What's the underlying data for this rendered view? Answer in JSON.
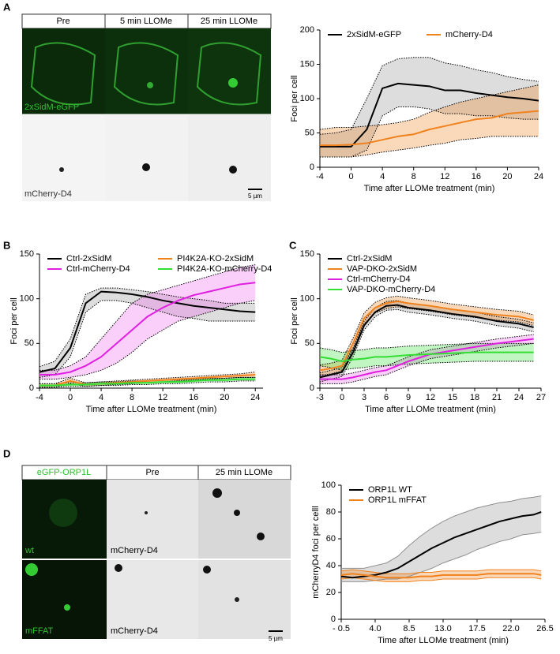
{
  "figure": {
    "panels": [
      "A",
      "B",
      "C",
      "D"
    ],
    "a_images": {
      "headers": [
        "Pre",
        "5 min LLOMe",
        "25 min LLOMe"
      ],
      "row_labels": [
        "2xSidM-eGFP",
        "mCherry-D4"
      ],
      "scale": "5 µm"
    },
    "d_images": {
      "headers": [
        "eGFP-ORP1L",
        "Pre",
        "25 min LLOMe"
      ],
      "row_labels": [
        "wt",
        "mFFAT"
      ],
      "channel_labels": [
        "mCherry-D4",
        "mCherry-D4"
      ],
      "scale": "5 µm"
    }
  },
  "chart_data": [
    {
      "type": "line",
      "xlabel": "Time after LLOMe treatment (min)",
      "ylabel": "Foci per cell",
      "legend": "top",
      "band_border": "dotted",
      "x": [
        -4,
        -2,
        0,
        2,
        4,
        6,
        8,
        10,
        12,
        14,
        16,
        18,
        20,
        22,
        24
      ],
      "xlim": [
        -4,
        24
      ],
      "xticks": [
        -4,
        0,
        4,
        8,
        12,
        16,
        20,
        24
      ],
      "ylim": [
        0,
        200
      ],
      "yticks": [
        0,
        50,
        100,
        150,
        200
      ],
      "series": [
        {
          "name": "2xSidM-eGFP",
          "color": "#000000",
          "band_color": "#909090",
          "values": [
            30,
            30,
            30,
            55,
            115,
            122,
            120,
            118,
            112,
            112,
            108,
            105,
            102,
            100,
            97
          ],
          "lower": [
            15,
            15,
            15,
            25,
            75,
            88,
            88,
            85,
            78,
            78,
            75,
            75,
            72,
            70,
            70
          ],
          "upper": [
            48,
            50,
            55,
            100,
            148,
            158,
            160,
            160,
            152,
            148,
            142,
            138,
            132,
            128,
            125
          ]
        },
        {
          "name": "mCherry-D4",
          "color": "#f0821e",
          "band_color": "#f0821e",
          "values": [
            32,
            32,
            33,
            35,
            40,
            45,
            48,
            55,
            60,
            65,
            70,
            72,
            78,
            80,
            82
          ],
          "lower": [
            15,
            15,
            15,
            18,
            22,
            25,
            28,
            32,
            35,
            40,
            42,
            45,
            45,
            45,
            45
          ],
          "upper": [
            55,
            58,
            58,
            60,
            62,
            65,
            70,
            80,
            88,
            95,
            100,
            105,
            110,
            115,
            120
          ]
        }
      ]
    },
    {
      "type": "line",
      "xlabel": "Time after LLOMe treatment (min)",
      "ylabel": "Foci per cell",
      "legend": "top-left",
      "legend_columns": 2,
      "band_border": "dotted",
      "x": [
        -4,
        -2,
        0,
        2,
        4,
        6,
        8,
        10,
        12,
        14,
        16,
        18,
        20,
        22,
        24
      ],
      "xlim": [
        -4,
        25
      ],
      "xticks": [
        -4,
        0,
        4,
        8,
        12,
        16,
        20,
        24
      ],
      "ylim": [
        0,
        150
      ],
      "yticks": [
        0,
        50,
        100,
        150
      ],
      "series": [
        {
          "name": "Ctrl-2xSidM",
          "color": "#000000",
          "band_color": "#909090",
          "values": [
            18,
            22,
            45,
            95,
            108,
            107,
            105,
            102,
            98,
            95,
            92,
            90,
            88,
            86,
            85
          ],
          "lower": [
            12,
            15,
            35,
            85,
            98,
            98,
            95,
            90,
            85,
            80,
            78,
            75,
            75,
            75,
            75
          ],
          "upper": [
            24,
            30,
            55,
            105,
            112,
            112,
            110,
            108,
            105,
            102,
            100,
            98,
            95,
            95,
            95
          ]
        },
        {
          "name": "PI4K2A-KO-2xSidM",
          "color": "#f0821e",
          "band_color": "#f0821e",
          "values": [
            3,
            3,
            8,
            4,
            5,
            6,
            7,
            8,
            9,
            10,
            11,
            12,
            13,
            14,
            15
          ],
          "lower": [
            1,
            1,
            5,
            2,
            3,
            4,
            5,
            6,
            7,
            8,
            9,
            10,
            11,
            12,
            12
          ],
          "upper": [
            5,
            5,
            11,
            6,
            7,
            8,
            9,
            10,
            11,
            12,
            13,
            14,
            15,
            16,
            18
          ]
        },
        {
          "name": "Ctrl-mCherry-D4",
          "color": "#e020e0",
          "band_color": "#f060f0",
          "values": [
            15,
            15,
            18,
            25,
            35,
            50,
            65,
            80,
            90,
            98,
            104,
            108,
            112,
            116,
            118
          ],
          "lower": [
            10,
            10,
            12,
            15,
            20,
            28,
            40,
            55,
            65,
            75,
            80,
            85,
            90,
            95,
            98
          ],
          "upper": [
            20,
            20,
            25,
            35,
            55,
            75,
            95,
            105,
            110,
            115,
            120,
            125,
            130,
            135,
            138
          ]
        },
        {
          "name": "PI4K2A-KO-mCherry-D4",
          "color": "#33dd33",
          "band_color": "#33dd33",
          "values": [
            3,
            3,
            4,
            4,
            5,
            5,
            6,
            6,
            7,
            7,
            8,
            9,
            9,
            10,
            10
          ],
          "lower": [
            1,
            1,
            2,
            2,
            3,
            3,
            4,
            4,
            5,
            5,
            6,
            7,
            7,
            8,
            8
          ],
          "upper": [
            5,
            5,
            6,
            6,
            7,
            7,
            8,
            8,
            9,
            9,
            10,
            11,
            11,
            12,
            12
          ]
        }
      ]
    },
    {
      "type": "line",
      "xlabel": "Time after LLOMe treatment (min)",
      "ylabel": "Foci per cell",
      "legend": "top-left",
      "legend_columns": 1,
      "band_border": "dotted",
      "x": [
        -3,
        -1.5,
        0,
        1.5,
        3,
        4.5,
        6,
        7.5,
        9,
        12,
        15,
        18,
        21,
        24,
        26
      ],
      "xlim": [
        -3,
        27
      ],
      "xticks": [
        -3,
        0,
        3,
        6,
        9,
        12,
        15,
        18,
        21,
        24,
        27
      ],
      "ylim": [
        0,
        150
      ],
      "yticks": [
        0,
        50,
        100,
        150
      ],
      "series": [
        {
          "name": "Ctrl-2xSidM",
          "color": "#000000",
          "band_color": "#909090",
          "values": [
            12,
            15,
            18,
            40,
            70,
            85,
            92,
            93,
            90,
            87,
            83,
            80,
            75,
            72,
            68
          ],
          "lower": [
            7,
            10,
            13,
            35,
            65,
            80,
            87,
            88,
            85,
            82,
            78,
            75,
            70,
            67,
            63
          ],
          "upper": [
            17,
            20,
            23,
            45,
            75,
            90,
            97,
            98,
            95,
            92,
            88,
            85,
            80,
            77,
            73
          ]
        },
        {
          "name": "VAP-DKO-2xSidM",
          "color": "#f0821e",
          "band_color": "#f0821e",
          "values": [
            20,
            22,
            25,
            50,
            78,
            90,
            95,
            97,
            95,
            92,
            88,
            85,
            82,
            80,
            76
          ],
          "lower": [
            14,
            16,
            19,
            44,
            72,
            84,
            89,
            91,
            89,
            86,
            82,
            79,
            76,
            74,
            70
          ],
          "upper": [
            26,
            28,
            31,
            56,
            84,
            96,
            101,
            103,
            101,
            98,
            94,
            91,
            88,
            86,
            82
          ]
        },
        {
          "name": "Ctrl-mCherry-D4",
          "color": "#e020e0",
          "band_color": "#f060f0",
          "values": [
            10,
            10,
            10,
            12,
            15,
            18,
            20,
            25,
            30,
            38,
            42,
            46,
            50,
            53,
            55
          ],
          "lower": [
            5,
            5,
            5,
            7,
            10,
            13,
            15,
            20,
            25,
            33,
            37,
            41,
            45,
            48,
            50
          ],
          "upper": [
            15,
            15,
            15,
            17,
            20,
            23,
            25,
            30,
            35,
            43,
            47,
            51,
            55,
            58,
            60
          ]
        },
        {
          "name": "VAP-DKO-mCherry-D4",
          "color": "#33dd33",
          "band_color": "#33dd33",
          "values": [
            35,
            33,
            30,
            32,
            33,
            35,
            35,
            36,
            37,
            38,
            39,
            40,
            40,
            40,
            40
          ],
          "lower": [
            25,
            23,
            20,
            22,
            23,
            25,
            25,
            26,
            27,
            28,
            29,
            30,
            30,
            30,
            30
          ],
          "upper": [
            45,
            43,
            40,
            42,
            43,
            45,
            45,
            46,
            47,
            48,
            49,
            50,
            50,
            50,
            50
          ]
        }
      ]
    },
    {
      "type": "line",
      "xlabel": "Time after LLOMe treatment (min)",
      "ylabel": "mCherryD4 foci per celll",
      "legend": "top-left",
      "legend_columns": 1,
      "band_border": "solid",
      "x": [
        -0.5,
        1,
        2.5,
        4,
        5.5,
        7,
        8.5,
        10,
        11.5,
        13,
        14.5,
        16,
        17.5,
        19,
        20.5,
        22,
        23.5,
        25,
        26
      ],
      "xlim": [
        -0.5,
        26.5
      ],
      "xticks": [
        {
          "value": -0.5,
          "label": "- 0.5"
        },
        {
          "value": 4,
          "label": "4.0"
        },
        8.5,
        {
          "value": 13,
          "label": "13.0"
        },
        17.5,
        {
          "value": 22,
          "label": "22.0"
        },
        26.5
      ],
      "ylim": [
        0,
        100
      ],
      "yticks": [
        0,
        20,
        40,
        60,
        80,
        100
      ],
      "series": [
        {
          "name": "ORP1L WT",
          "color": "#000000",
          "band_color": "#909090",
          "values": [
            32,
            31,
            32,
            33,
            35,
            38,
            43,
            48,
            53,
            57,
            61,
            64,
            67,
            70,
            73,
            75,
            77,
            78,
            80
          ],
          "lower": [
            28,
            28,
            28,
            29,
            30,
            30,
            32,
            35,
            38,
            42,
            45,
            48,
            52,
            55,
            58,
            60,
            63,
            64,
            65
          ],
          "upper": [
            38,
            38,
            38,
            40,
            42,
            47,
            55,
            62,
            68,
            73,
            77,
            80,
            83,
            85,
            87,
            88,
            90,
            91,
            92
          ]
        },
        {
          "name": "ORP1L mFFAT",
          "color": "#f0821e",
          "band_color": "#f0821e",
          "values": [
            33,
            34,
            33,
            32,
            31,
            31,
            31,
            32,
            32,
            33,
            33,
            33,
            33,
            34,
            34,
            34,
            34,
            34,
            33
          ],
          "lower": [
            30,
            31,
            30,
            29,
            28,
            28,
            28,
            29,
            29,
            30,
            30,
            30,
            30,
            31,
            31,
            31,
            31,
            31,
            30
          ],
          "upper": [
            36,
            37,
            36,
            35,
            34,
            34,
            34,
            35,
            35,
            36,
            36,
            36,
            36,
            37,
            37,
            37,
            37,
            37,
            36
          ]
        }
      ]
    }
  ]
}
